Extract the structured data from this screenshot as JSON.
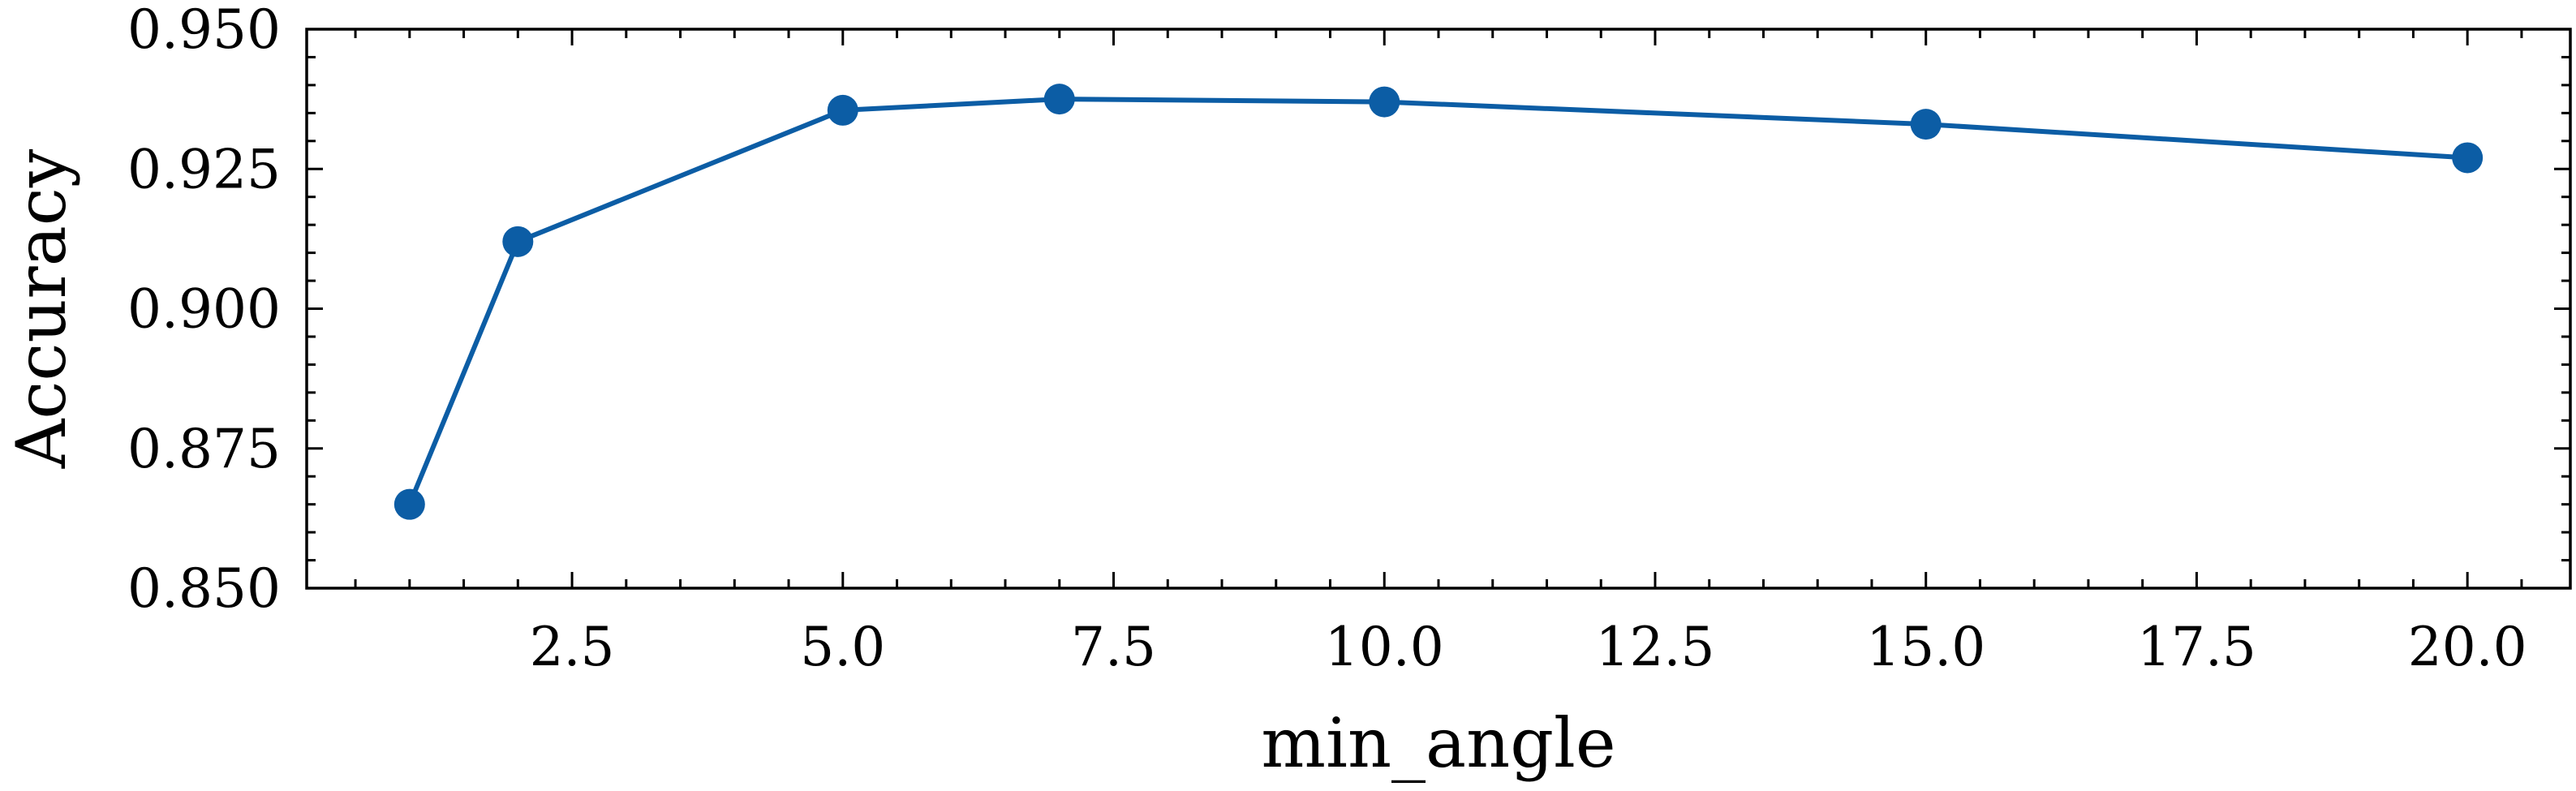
{
  "chart_data": {
    "type": "line",
    "title": "",
    "xlabel": "min_angle",
    "ylabel": "Accuracy",
    "x": [
      1,
      2,
      5,
      7,
      10,
      15,
      20
    ],
    "series": [
      {
        "values": [
          0.865,
          0.912,
          0.9355,
          0.9375,
          0.937,
          0.933,
          0.927
        ]
      }
    ],
    "xlim": [
      0.05,
      20.95
    ],
    "ylim": [
      0.85,
      0.95
    ],
    "xticks": [
      2.5,
      5.0,
      7.5,
      10.0,
      12.5,
      15.0,
      17.5,
      20.0
    ],
    "xtick_labels": [
      "2.5",
      "5.0",
      "7.5",
      "10.0",
      "12.5",
      "15.0",
      "17.5",
      "20.0"
    ],
    "yticks": [
      0.85,
      0.875,
      0.9,
      0.925,
      0.95
    ],
    "ytick_labels": [
      "0.850",
      "0.875",
      "0.900",
      "0.925",
      "0.950"
    ],
    "grid": false,
    "legend": "none",
    "color": "#0c5da5",
    "marker": "circle"
  }
}
